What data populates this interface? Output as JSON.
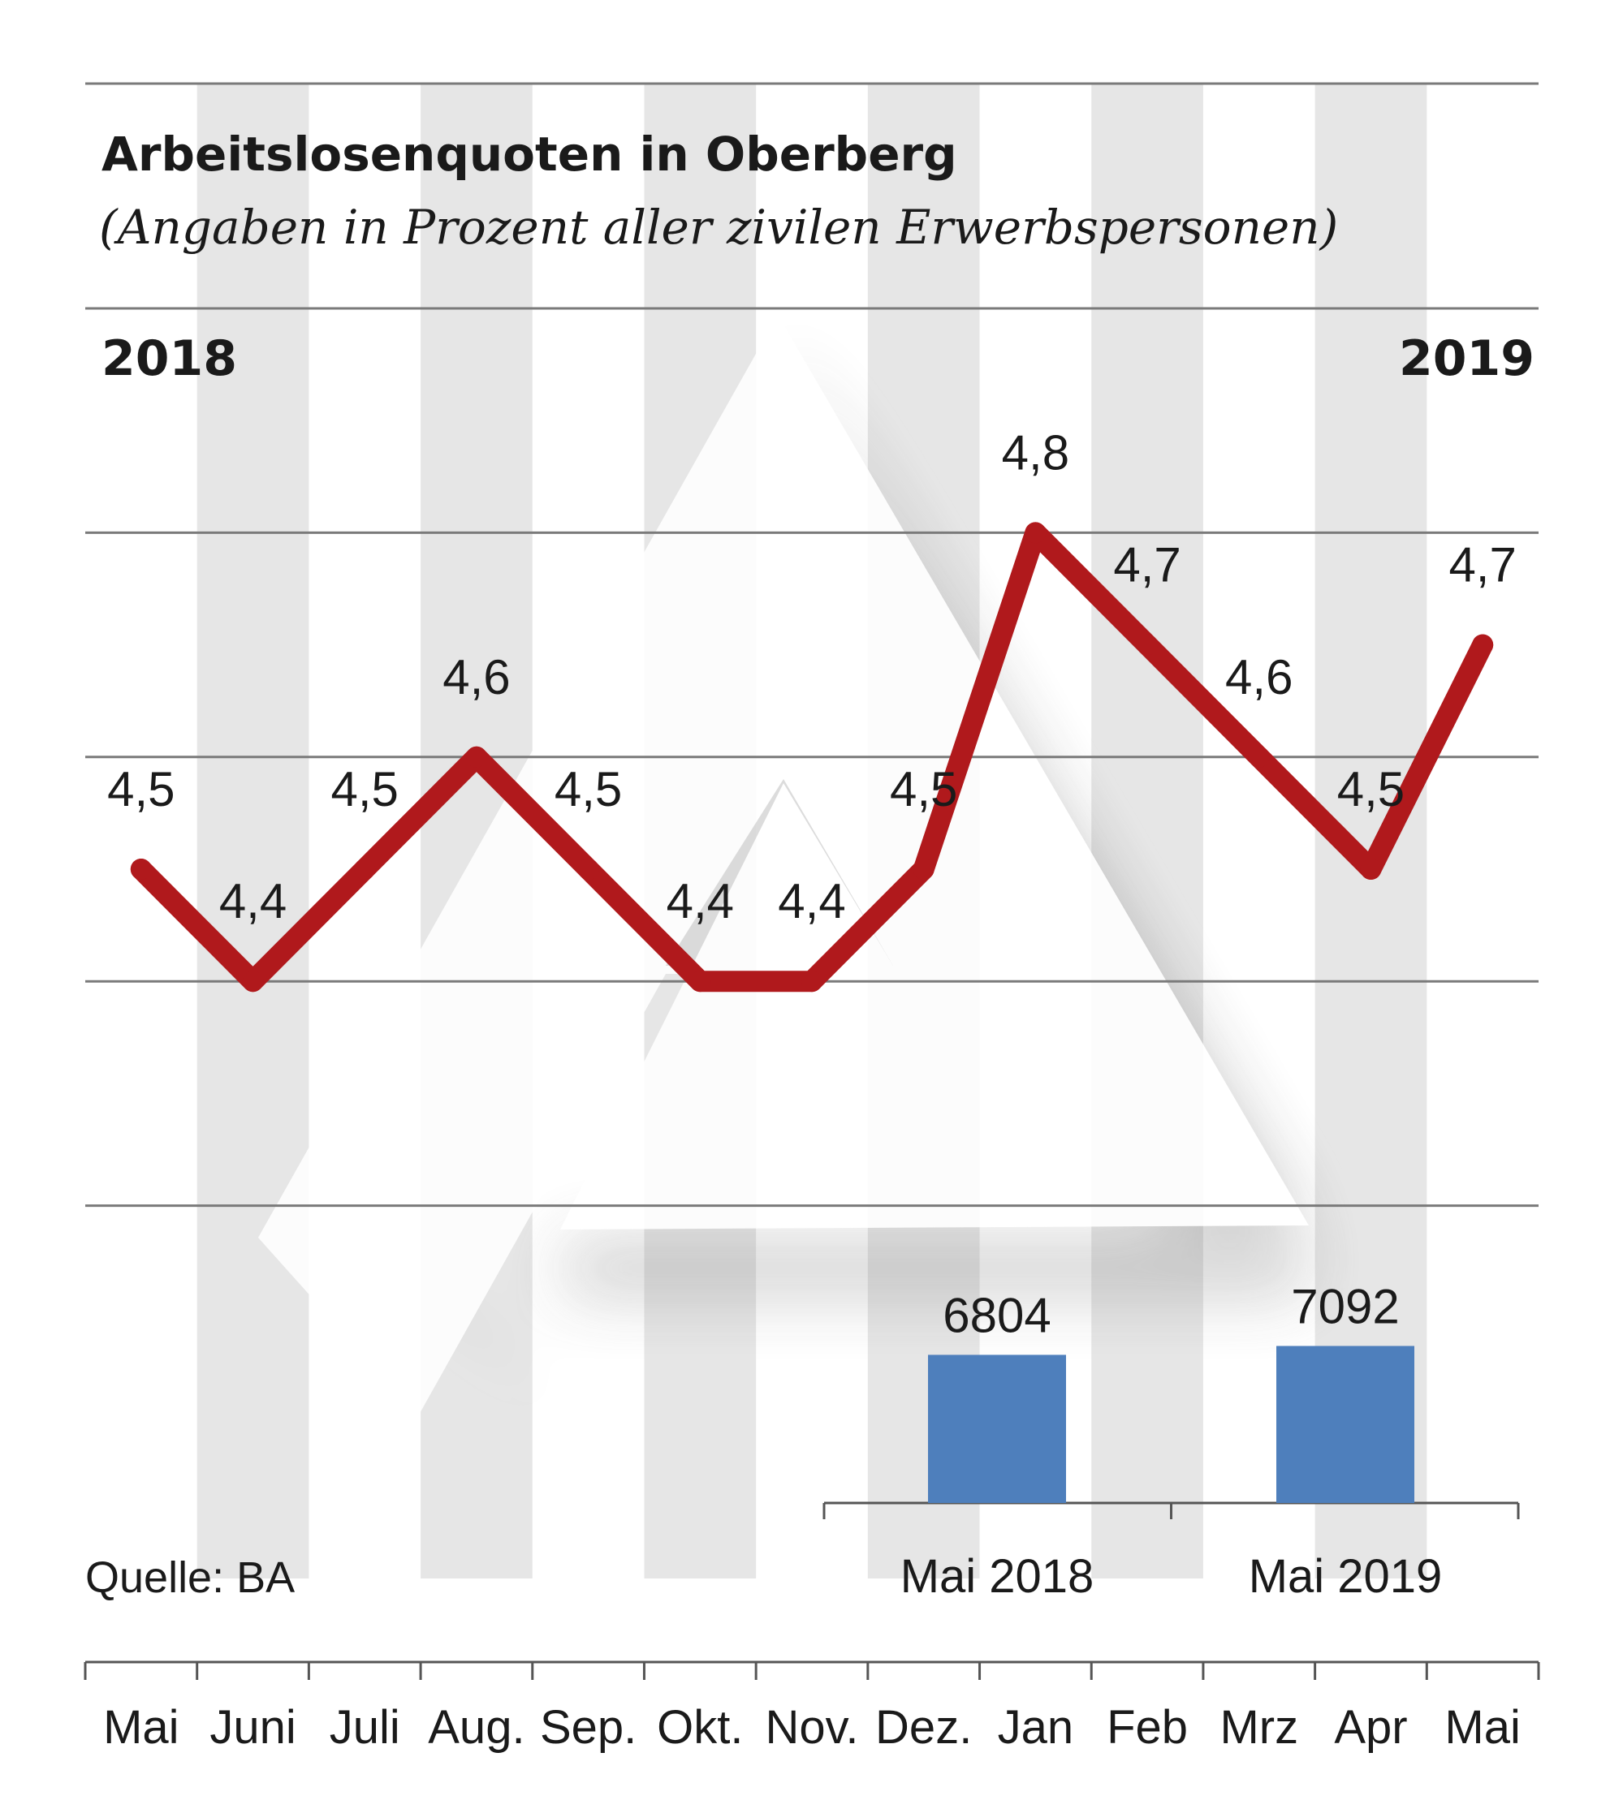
{
  "chart_data": [
    {
      "type": "line",
      "title": "Arbeitslosenquoten in Oberberg",
      "subtitle": "(Angaben in Prozent aller zivilen Erwerbspersonen)",
      "year_start_label": "2018",
      "year_end_label": "2019",
      "categories": [
        "Mai",
        "Juni",
        "Juli",
        "Aug.",
        "Sep.",
        "Okt.",
        "Nov.",
        "Dez.",
        "Jan",
        "Feb",
        "Mrz",
        "Apr",
        "Mai"
      ],
      "values": [
        4.5,
        4.4,
        4.5,
        4.6,
        4.5,
        4.4,
        4.4,
        4.5,
        4.8,
        4.7,
        4.6,
        4.5,
        4.7
      ],
      "value_labels": [
        "4,5",
        "4,4",
        "4,5",
        "4,6",
        "4,5",
        "4,4",
        "4,4",
        "4,5",
        "4,8",
        "4,7",
        "4,6",
        "4,5",
        "4,7"
      ],
      "ylim": [
        4.0,
        5.0
      ],
      "grid": true,
      "xlabel": "",
      "ylabel": "",
      "line_color": "#b0191c"
    },
    {
      "type": "bar",
      "categories": [
        "Mai 2018",
        "Mai 2019"
      ],
      "values": [
        6804,
        7092
      ],
      "value_labels": [
        "6804",
        "7092"
      ],
      "bar_color": "#4e7fbc"
    }
  ],
  "source": "Quelle: BA",
  "colors": {
    "stripe": "#e6e6e6",
    "grid": "#7a7a7a",
    "axis": "#555555"
  }
}
